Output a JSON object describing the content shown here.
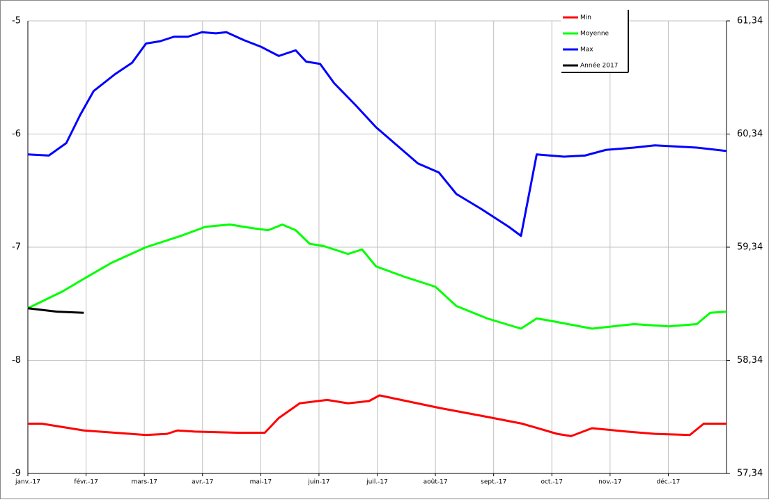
{
  "chart_data": {
    "type": "line",
    "xlim": [
      0,
      12
    ],
    "xticks": [
      {
        "value": 0,
        "label": "janv.-17"
      },
      {
        "value": 1,
        "label": "févr.-17"
      },
      {
        "value": 2,
        "label": "mars-17"
      },
      {
        "value": 3,
        "label": "avr.-17"
      },
      {
        "value": 4,
        "label": "mai-17"
      },
      {
        "value": 5,
        "label": "juin-17"
      },
      {
        "value": 6,
        "label": "juil.-17"
      },
      {
        "value": 7,
        "label": "août-17"
      },
      {
        "value": 8,
        "label": "sept.-17"
      },
      {
        "value": 9,
        "label": "oct.-17"
      },
      {
        "value": 10,
        "label": "nov.-17"
      },
      {
        "value": 11,
        "label": "déc.-17"
      }
    ],
    "ylim": [
      -9,
      -5
    ],
    "yticks": [
      -9,
      -8,
      -7,
      -6,
      -5
    ],
    "y2lim": [
      57.34,
      61.34
    ],
    "y2ticks": [
      {
        "value": 57.34,
        "label": "57,34"
      },
      {
        "value": 58.34,
        "label": "58,34"
      },
      {
        "value": 59.34,
        "label": "59,34"
      },
      {
        "value": 60.34,
        "label": "60,34"
      },
      {
        "value": 61.34,
        "label": "61,34"
      }
    ],
    "grid": true,
    "legend": "top-right",
    "series": [
      {
        "name": "Min",
        "color": "#ff0000",
        "x": [
          0,
          0.24,
          0.6,
          0.96,
          2.03,
          2.39,
          2.57,
          2.87,
          3.59,
          4.07,
          4.31,
          4.67,
          5.14,
          5.5,
          5.86,
          6.04,
          7.06,
          7.89,
          8.49,
          9.09,
          9.33,
          9.69,
          10.29,
          10.77,
          11.37,
          11.61,
          12
        ],
        "values": [
          -8.56,
          -8.56,
          -8.59,
          -8.62,
          -8.66,
          -8.65,
          -8.62,
          -8.63,
          -8.64,
          -8.64,
          -8.51,
          -8.38,
          -8.35,
          -8.38,
          -8.36,
          -8.31,
          -8.42,
          -8.5,
          -8.56,
          -8.65,
          -8.67,
          -8.6,
          -8.63,
          -8.65,
          -8.66,
          -8.56,
          -8.56
        ]
      },
      {
        "name": "Moyenne",
        "color": "#00ff00",
        "x": [
          0,
          0.6,
          0.96,
          1.43,
          2.03,
          2.63,
          3.05,
          3.47,
          3.83,
          4.13,
          4.37,
          4.6,
          4.84,
          5.08,
          5.5,
          5.74,
          5.98,
          6.46,
          7.0,
          7.36,
          7.89,
          8.47,
          8.74,
          8.97,
          9.69,
          10.41,
          11.01,
          11.49,
          11.72,
          12
        ],
        "values": [
          -7.54,
          -7.39,
          -7.28,
          -7.14,
          -7.0,
          -6.9,
          -6.82,
          -6.8,
          -6.83,
          -6.85,
          -6.8,
          -6.85,
          -6.97,
          -6.99,
          -7.06,
          -7.02,
          -7.17,
          -7.26,
          -7.35,
          -7.52,
          -7.63,
          -7.72,
          -7.63,
          -7.65,
          -7.72,
          -7.68,
          -7.7,
          -7.68,
          -7.58,
          -7.57
        ]
      },
      {
        "name": "Max",
        "color": "#0000ff",
        "x": [
          0,
          0.36,
          0.66,
          0.9,
          1.13,
          1.5,
          1.79,
          2.03,
          2.27,
          2.51,
          2.75,
          2.99,
          3.23,
          3.41,
          3.71,
          4.01,
          4.31,
          4.6,
          4.78,
          5.02,
          5.26,
          5.62,
          5.98,
          6.34,
          6.7,
          7.06,
          7.36,
          7.78,
          8.26,
          8.47,
          8.74,
          8.97,
          9.21,
          9.57,
          9.93,
          10.41,
          10.77,
          11.13,
          11.49,
          12
        ],
        "values": [
          -6.18,
          -6.19,
          -6.08,
          -5.83,
          -5.62,
          -5.47,
          -5.37,
          -5.2,
          -5.18,
          -5.14,
          -5.14,
          -5.1,
          -5.11,
          -5.1,
          -5.17,
          -5.23,
          -5.31,
          -5.26,
          -5.36,
          -5.38,
          -5.55,
          -5.74,
          -5.94,
          -6.1,
          -6.26,
          -6.34,
          -6.53,
          -6.66,
          -6.82,
          -6.9,
          -6.18,
          -6.19,
          -6.2,
          -6.19,
          -6.14,
          -6.12,
          -6.1,
          -6.11,
          -6.12,
          -6.15
        ]
      },
      {
        "name": "Année 2017",
        "color": "#000000",
        "x": [
          0,
          0.5,
          0.96
        ],
        "values": [
          -7.54,
          -7.57,
          -7.58
        ]
      }
    ]
  }
}
